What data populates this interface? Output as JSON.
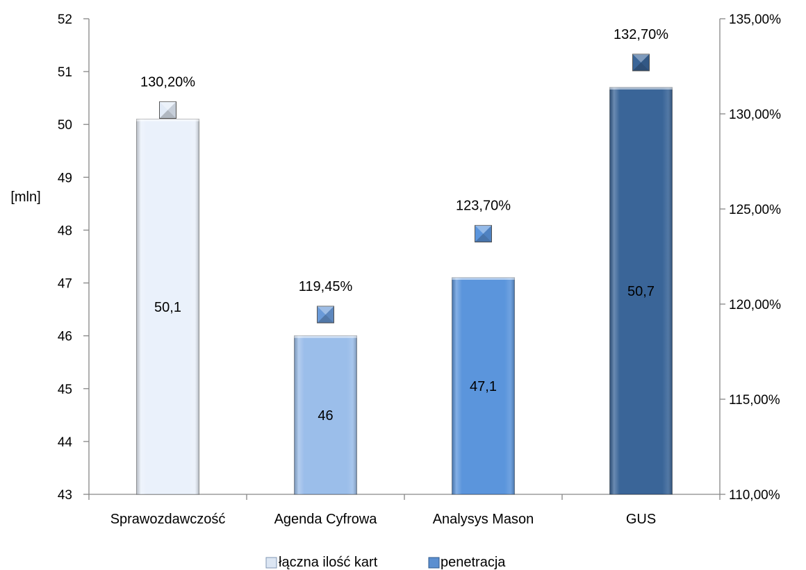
{
  "chart_data": {
    "type": "bar",
    "categories": [
      "Sprawozdawczość",
      "Agenda Cyfrowa",
      "Analysys Mason",
      "GUS"
    ],
    "series": [
      {
        "name": "łączna ilość kart",
        "axis": "left",
        "values": [
          50.1,
          46,
          47.1,
          50.7
        ],
        "labels": [
          "50,1",
          "46",
          "47,1",
          "50,7"
        ],
        "colors": [
          "#eaf1fb",
          "#9bbeea",
          "#5b95dc",
          "#3a6598"
        ]
      },
      {
        "name": "penetracja",
        "axis": "right",
        "type": "marker",
        "values": [
          130.2,
          119.45,
          123.7,
          132.7
        ],
        "labels": [
          "130,20%",
          "119,45%",
          "123,70%",
          "132,70%"
        ],
        "colors": [
          "#e2ebf7",
          "#6a9ad8",
          "#5b95dc",
          "#3a6598"
        ]
      }
    ],
    "y_left": {
      "label": "[mln]",
      "ylim": [
        43,
        52
      ],
      "ticks": [
        "43",
        "44",
        "45",
        "46",
        "47",
        "48",
        "49",
        "50",
        "51",
        "52"
      ]
    },
    "y_right": {
      "ylim": [
        110,
        135
      ],
      "ticks": [
        "110,00%",
        "115,00%",
        "120,00%",
        "125,00%",
        "130,00%",
        "135,00%"
      ]
    },
    "grid": false,
    "legend": {
      "position": "bottom",
      "items": [
        "łączna ilość kart",
        "penetracja"
      ],
      "colors": [
        "#dce6f3",
        "#5b8fd0"
      ]
    }
  }
}
